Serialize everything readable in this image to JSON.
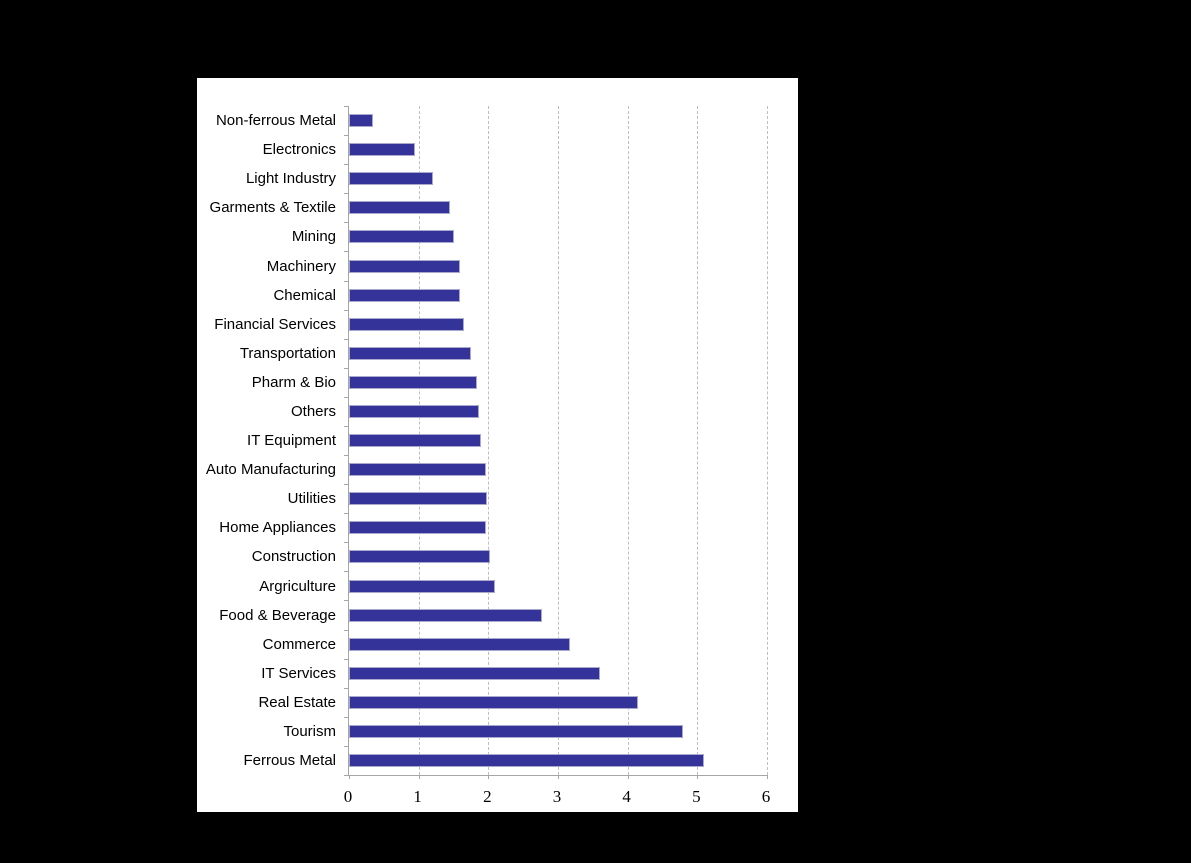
{
  "page": {
    "background": "#000000"
  },
  "chart_data": {
    "type": "bar",
    "orientation": "horizontal",
    "categories": [
      "Non-ferrous Metal",
      "Electronics",
      "Light Industry",
      "Garments & Textile",
      "Mining",
      "Machinery",
      "Chemical",
      "Financial Services",
      "Transportation",
      "Pharm & Bio",
      "Others",
      "IT Equipment",
      "Auto Manufacturing",
      "Utilities",
      "Home Appliances",
      "Construction",
      "Argriculture",
      "Food & Beverage",
      "Commerce",
      "IT Services",
      "Real Estate",
      "Tourism",
      "Ferrous Metal"
    ],
    "values": [
      0.35,
      0.95,
      1.2,
      1.45,
      1.5,
      1.6,
      1.6,
      1.65,
      1.75,
      1.84,
      1.86,
      1.9,
      1.96,
      1.98,
      1.97,
      2.03,
      2.1,
      2.77,
      3.17,
      3.6,
      4.15,
      4.8,
      5.1
    ],
    "xlabel": "",
    "ylabel": "",
    "xlim": [
      0,
      6
    ],
    "xticks": [
      "0",
      "1",
      "2",
      "3",
      "4",
      "5",
      "6"
    ],
    "grid": "vertical-dashed",
    "legend": "none",
    "colors": {
      "bar_fill": "#333399",
      "bar_border": "#A9A9CE",
      "gridline": "#BDBDBD",
      "axis": "#A6A6A6",
      "text": "#000000",
      "panel_background": "#FFFFFF",
      "page_background": "#000000"
    }
  }
}
